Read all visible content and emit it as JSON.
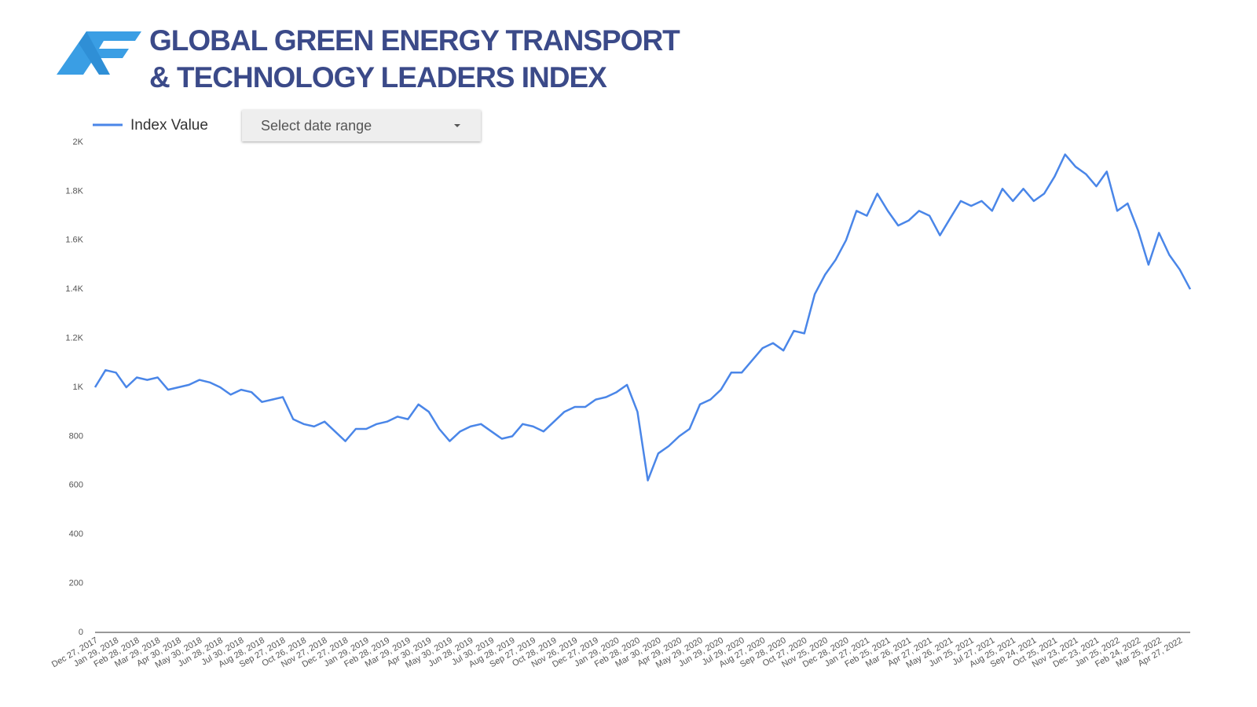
{
  "chart_data": {
    "type": "line",
    "title": "GLOBAL GREEN ENERGY TRANSPORT & TECHNOLOGY LEADERS INDEX",
    "date_range_placeholder": "Select date range",
    "categories": [
      "Dec 27, 2017",
      null,
      "Jan 29, 2018",
      null,
      "Feb 28, 2018",
      null,
      "Mar 29, 2018",
      null,
      "Apr 30, 2018",
      null,
      "May 30, 2018",
      null,
      "Jun 28, 2018",
      null,
      "Jul 30, 2018",
      null,
      "Aug 28, 2018",
      null,
      "Sep 27, 2018",
      null,
      "Oct 26, 2018",
      null,
      "Nov 27, 2018",
      null,
      "Dec 27, 2018",
      null,
      "Jan 29, 2019",
      null,
      "Feb 28, 2019",
      null,
      "Mar 29, 2019",
      null,
      "Apr 30, 2019",
      null,
      "May 30, 2019",
      null,
      "Jun 28, 2019",
      null,
      "Jul 30, 2019",
      null,
      "Aug 28, 2019",
      null,
      "Sep 27, 2019",
      null,
      "Oct 28, 2019",
      null,
      "Nov 26, 2019",
      null,
      "Dec 27, 2019",
      null,
      "Jan 29, 2020",
      null,
      "Feb 28, 2020",
      null,
      "Mar 30, 2020",
      null,
      "Apr 29, 2020",
      null,
      "May 29, 2020",
      null,
      "Jun 29, 2020",
      null,
      "Jul 29, 2020",
      null,
      "Aug 27, 2020",
      null,
      "Sep 28, 2020",
      null,
      "Oct 27, 2020",
      null,
      "Nov 25, 2020",
      null,
      "Dec 28, 2020",
      null,
      "Jan 27, 2021",
      null,
      "Feb 25, 2021",
      null,
      "Mar 26, 2021",
      null,
      "Apr 27, 2021",
      null,
      "May 26, 2021",
      null,
      "Jun 25, 2021",
      null,
      "Jul 27, 2021",
      null,
      "Aug 25, 2021",
      null,
      "Sep 24, 2021",
      null,
      "Oct 25, 2021",
      null,
      "Nov 23, 2021",
      null,
      "Dec 23, 2021",
      null,
      "Jan 25, 2022",
      null,
      "Feb 24, 2022",
      null,
      "Mar 25, 2022",
      null,
      "Apr 27, 2022",
      null
    ],
    "series": [
      {
        "name": "Index Value",
        "color": "#4a86e8",
        "values": [
          1000,
          1070,
          1060,
          1000,
          1040,
          1030,
          1040,
          990,
          1000,
          1010,
          1030,
          1020,
          1000,
          970,
          990,
          980,
          940,
          950,
          960,
          870,
          850,
          840,
          860,
          820,
          780,
          830,
          830,
          850,
          860,
          880,
          870,
          930,
          900,
          830,
          780,
          820,
          840,
          850,
          820,
          790,
          800,
          850,
          840,
          820,
          860,
          900,
          920,
          920,
          950,
          960,
          980,
          1010,
          900,
          620,
          730,
          760,
          800,
          830,
          930,
          950,
          990,
          1060,
          1060,
          1110,
          1160,
          1180,
          1150,
          1230,
          1220,
          1380,
          1460,
          1520,
          1600,
          1720,
          1700,
          1790,
          1720,
          1660,
          1680,
          1720,
          1700,
          1620,
          1690,
          1760,
          1740,
          1760,
          1720,
          1810,
          1760,
          1810,
          1760,
          1790,
          1860,
          1950,
          1900,
          1870,
          1820,
          1880,
          1720,
          1750,
          1640,
          1500,
          1630,
          1540,
          1480,
          1400
        ]
      }
    ],
    "ylim": [
      0,
      2000
    ],
    "yticks": [
      0,
      200,
      400,
      600,
      800,
      {
        "value": 1000,
        "label": "1K"
      },
      {
        "value": 1200,
        "label": "1.2K"
      },
      {
        "value": 1400,
        "label": "1.4K"
      },
      {
        "value": 1600,
        "label": "1.6K"
      },
      {
        "value": 1800,
        "label": "1.8K"
      },
      {
        "value": 2000,
        "label": "2K"
      }
    ],
    "grid": false
  }
}
